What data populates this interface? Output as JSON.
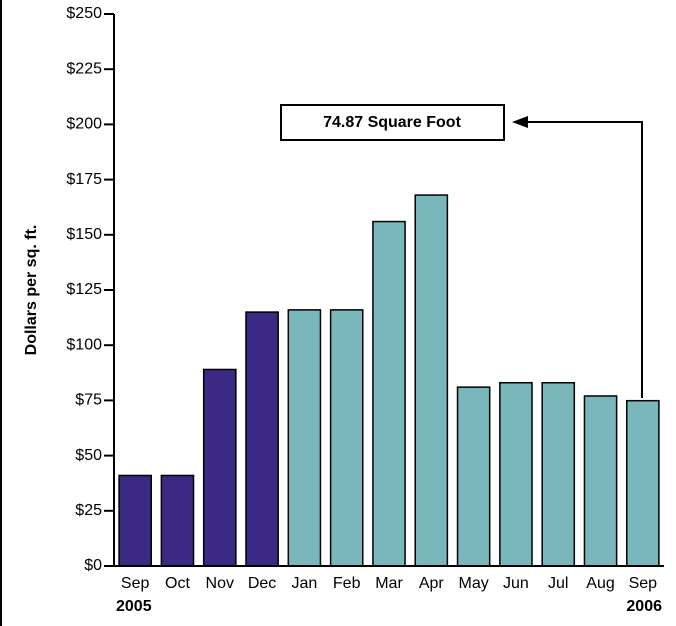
{
  "chart_data": {
    "type": "bar",
    "y_label": "Dollars per sq. ft.",
    "annotation": "74.87 Square Foot",
    "categories": [
      "Sep",
      "Oct",
      "Nov",
      "Dec",
      "Jan",
      "Feb",
      "Mar",
      "Apr",
      "May",
      "Jun",
      "Jul",
      "Aug",
      "Sep"
    ],
    "year_labels": [
      "2005",
      "2006"
    ],
    "values": [
      41,
      41,
      89,
      115,
      116,
      116,
      156,
      168,
      81,
      83,
      83,
      77,
      74.87
    ],
    "colors": [
      "#3b2a84",
      "#3b2a84",
      "#3b2a84",
      "#3b2a84",
      "#7ab7bd",
      "#7ab7bd",
      "#7ab7bd",
      "#7ab7bd",
      "#7ab7bd",
      "#7ab7bd",
      "#7ab7bd",
      "#7ab7bd",
      "#7ab7bd"
    ],
    "ylim": [
      0,
      250
    ],
    "yticks": [
      {
        "value": 0,
        "label": "$0"
      },
      {
        "value": 25,
        "label": "$25"
      },
      {
        "value": 50,
        "label": "$50"
      },
      {
        "value": 75,
        "label": "$75"
      },
      {
        "value": 100,
        "label": "$100"
      },
      {
        "value": 125,
        "label": "$125"
      },
      {
        "value": 150,
        "label": "$150"
      },
      {
        "value": 175,
        "label": "$175"
      },
      {
        "value": 200,
        "label": "$200"
      },
      {
        "value": 225,
        "label": "$225"
      },
      {
        "value": 250,
        "label": "$250"
      }
    ],
    "grid": false
  }
}
